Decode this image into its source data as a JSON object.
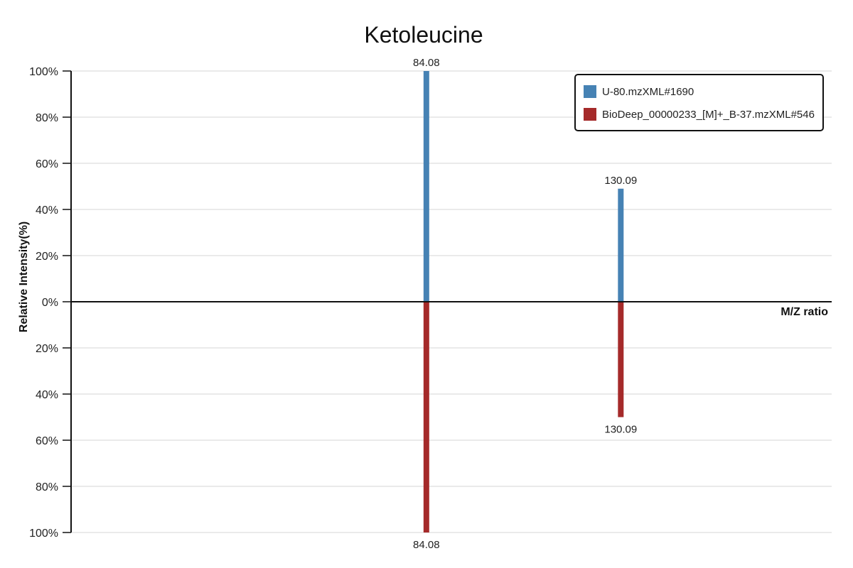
{
  "chart_data": {
    "type": "bar",
    "title": "Ketoleucine",
    "xlabel": "M/Z ratio",
    "ylabel": "Relative Intensity(%)",
    "ylim": [
      -100,
      100
    ],
    "yticks": [
      {
        "value": 100,
        "label": "100%"
      },
      {
        "value": 80,
        "label": "80%"
      },
      {
        "value": 60,
        "label": "60%"
      },
      {
        "value": 40,
        "label": "40%"
      },
      {
        "value": 20,
        "label": "20%"
      },
      {
        "value": 0,
        "label": "0%"
      },
      {
        "value": -20,
        "label": "20%"
      },
      {
        "value": -40,
        "label": "40%"
      },
      {
        "value": -60,
        "label": "60%"
      },
      {
        "value": -80,
        "label": "80%"
      },
      {
        "value": -100,
        "label": "100%"
      }
    ],
    "xlim": [
      0,
      180
    ],
    "grid": true,
    "legend": "top-right",
    "series": [
      {
        "name": "U-80.mzXML#1690",
        "color": "#4682b4",
        "points": [
          {
            "mz": 84.08,
            "label": "84.08",
            "intensity": 100
          },
          {
            "mz": 130.09,
            "label": "130.09",
            "intensity": 49
          }
        ]
      },
      {
        "name": "BioDeep_00000233_[M]+_B-37.mzXML#546",
        "color": "#a52a2a",
        "points": [
          {
            "mz": 84.08,
            "label": "84.08",
            "intensity": -100
          },
          {
            "mz": 130.09,
            "label": "130.09",
            "intensity": -50
          }
        ]
      }
    ]
  }
}
